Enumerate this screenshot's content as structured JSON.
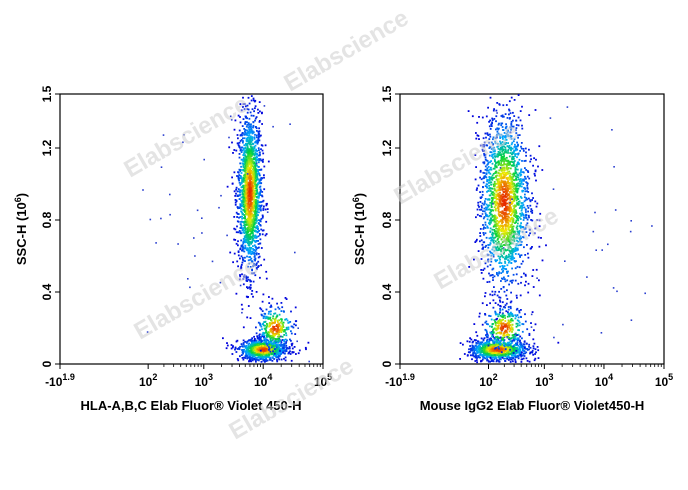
{
  "watermark": "Elabscience",
  "chart_data": [
    {
      "type": "scatter",
      "title": "",
      "xlabel": "HLA-A,B,C Elab Fluor® Violet 450-H",
      "ylabel_main": "SSC-H",
      "ylabel_unit_base": "(10",
      "ylabel_unit_exp": "6",
      "ylabel_unit_close": ")",
      "x_scale": "biexponential (log)",
      "x_ticks": [
        {
          "base": "-10",
          "exp": "1.9",
          "value": -79
        },
        {
          "base": "10",
          "exp": "2",
          "value": 100
        },
        {
          "base": "10",
          "exp": "3",
          "value": 1000
        },
        {
          "base": "10",
          "exp": "4",
          "value": 10000
        },
        {
          "base": "10",
          "exp": "5",
          "value": 100000
        }
      ],
      "y_ticks": [
        "0",
        "0.4",
        "0.8",
        "1.2",
        "1.5"
      ],
      "ylim": [
        0,
        1.5
      ],
      "populations": [
        {
          "name": "",
          "x_center": 6000,
          "y_center": 0.95,
          "x_spread_log": 0.1,
          "y_spread": 0.22,
          "events": 1800
        },
        {
          "name": "",
          "x_center": 10000,
          "y_center": 0.08,
          "x_spread_log": 0.2,
          "y_spread": 0.03,
          "events": 900
        },
        {
          "name": "",
          "x_center": 16000,
          "y_center": 0.2,
          "x_spread_log": 0.15,
          "y_spread": 0.06,
          "events": 300
        }
      ]
    },
    {
      "type": "scatter",
      "title": "",
      "xlabel": "Mouse IgG2 Elab Fluor® Violet450-H",
      "ylabel_main": "SSC-H",
      "ylabel_unit_base": "(10",
      "ylabel_unit_exp": "6",
      "ylabel_unit_close": ")",
      "x_scale": "biexponential (log)",
      "x_ticks": [
        {
          "base": "-10",
          "exp": "1.9",
          "value": -79
        },
        {
          "base": "10",
          "exp": "2",
          "value": 100
        },
        {
          "base": "10",
          "exp": "3",
          "value": 1000
        },
        {
          "base": "10",
          "exp": "4",
          "value": 10000
        },
        {
          "base": "10",
          "exp": "5",
          "value": 100000
        }
      ],
      "y_ticks": [
        "0",
        "0.4",
        "0.8",
        "1.2",
        "1.5"
      ],
      "ylim": [
        0,
        1.5
      ],
      "populations": [
        {
          "name": "",
          "x_center": 200,
          "y_center": 0.9,
          "x_spread_log": 0.22,
          "y_spread": 0.24,
          "events": 1900
        },
        {
          "name": "",
          "x_center": 150,
          "y_center": 0.08,
          "x_spread_log": 0.28,
          "y_spread": 0.03,
          "events": 900
        },
        {
          "name": "",
          "x_center": 200,
          "y_center": 0.2,
          "x_spread_log": 0.2,
          "y_spread": 0.06,
          "events": 300
        }
      ]
    }
  ]
}
